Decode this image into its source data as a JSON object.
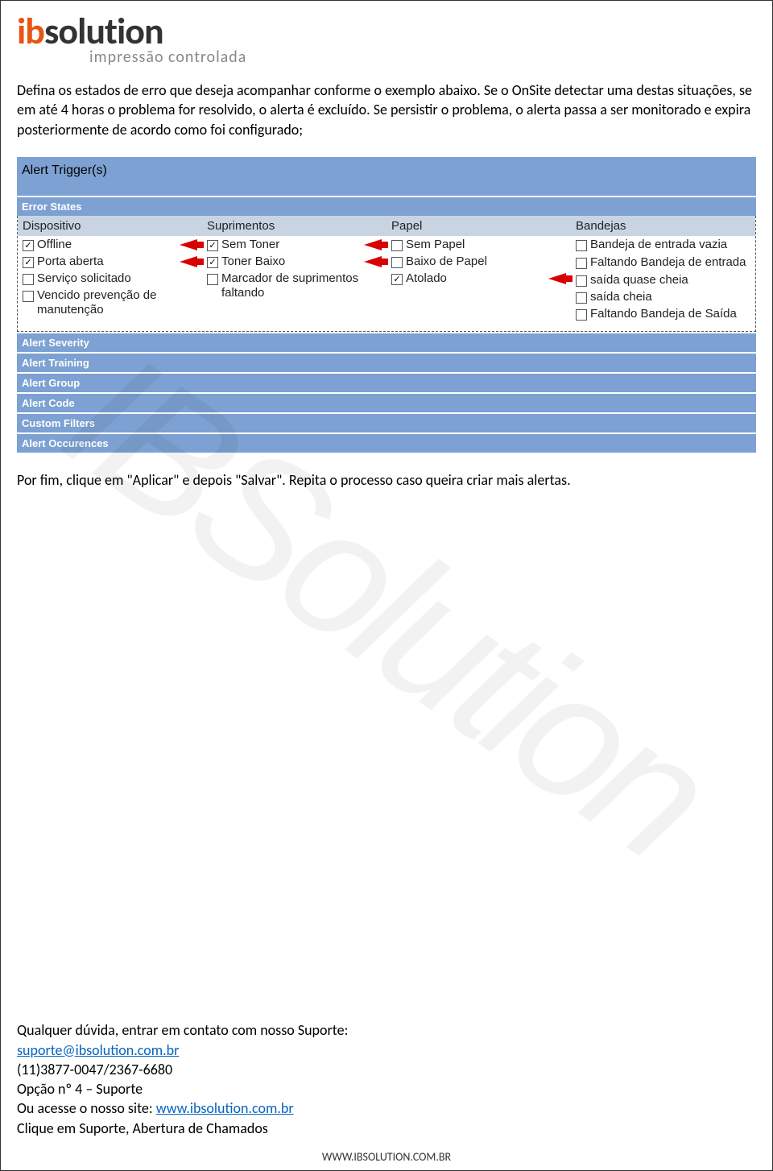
{
  "logo": {
    "prefix": "ib",
    "suffix": "solution",
    "tagline": "impressão controlada"
  },
  "intro": "Defina os estados de erro que deseja acompanhar conforme o exemplo abaixo. Se o OnSite detectar uma destas situações, se em até 4 horas o problema for resolvido, o alerta é excluído. Se persistir o problema, o alerta passa a ser monitorado e expira posteriormente de acordo como foi configurado;",
  "panel_title": "Alert Trigger(s)",
  "error_states_label": "Error States",
  "columns": {
    "dispositivo": {
      "header": "Dispositivo",
      "items": [
        {
          "label": "Offline",
          "checked": true,
          "arrow": true
        },
        {
          "label": "Porta aberta",
          "checked": true,
          "arrow": true
        },
        {
          "label": "Serviço solicitado",
          "checked": false,
          "arrow": false
        },
        {
          "label": "Vencido prevenção de manutenção",
          "checked": false,
          "arrow": false
        }
      ]
    },
    "suprimentos": {
      "header": "Suprimentos",
      "items": [
        {
          "label": "Sem Toner",
          "checked": true,
          "arrow": true
        },
        {
          "label": "Toner Baixo",
          "checked": true,
          "arrow": true
        },
        {
          "label": "Marcador de suprimentos faltando",
          "checked": false,
          "arrow": false
        }
      ]
    },
    "papel": {
      "header": "Papel",
      "items": [
        {
          "label": "Sem Papel",
          "checked": false,
          "arrow": false
        },
        {
          "label": "Baixo de Papel",
          "checked": false,
          "arrow": false
        },
        {
          "label": "Atolado",
          "checked": true,
          "arrow": true
        }
      ]
    },
    "bandejas": {
      "header": "Bandejas",
      "items": [
        {
          "label": "Bandeja de entrada vazia",
          "checked": false,
          "arrow": false
        },
        {
          "label": "Faltando Bandeja de entrada",
          "checked": false,
          "arrow": false
        },
        {
          "label": "saída quase cheia",
          "checked": false,
          "arrow": false
        },
        {
          "label": "saída cheia",
          "checked": false,
          "arrow": false
        },
        {
          "label": "Faltando Bandeja de Saída",
          "checked": false,
          "arrow": false
        }
      ]
    }
  },
  "subheaders": [
    "Alert Severity",
    "Alert Training",
    "Alert Group",
    "Alert Code",
    "Custom Filters",
    "Alert Occurences"
  ],
  "after_panel": "Por fim, clique em \"Aplicar\" e depois \"Salvar\". Repita o processo caso queira criar mais alertas.",
  "contact": {
    "line1": "Qualquer dúvida, entrar em contato com nosso Suporte:",
    "email": "suporte@ibsolution.com.br",
    "phone": "(11)3877-0047/2367-6680",
    "option": "Opção nº 4 – Suporte",
    "site_prefix": "Ou acesse o nosso site: ",
    "site": "www.ibsolution.com.br",
    "last": "Clique em Suporte, Abertura de Chamados"
  },
  "footer_url": "WWW.IBSOLUTION.COM.BR",
  "watermark": "IBSolution"
}
